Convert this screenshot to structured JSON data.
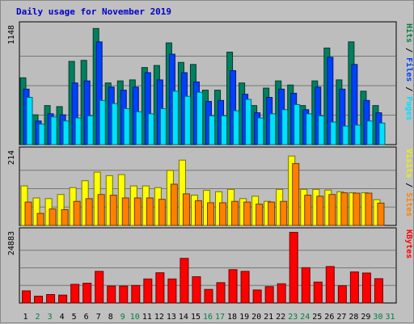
{
  "title": "Daily usage for November 2019",
  "chart_data": [
    {
      "type": "bar",
      "panel": "hits-files-pages",
      "ymax_label": "1148",
      "ylim": [
        0,
        1148
      ],
      "grid": true,
      "right_labels": [
        {
          "text": "Hits",
          "color": "#008040"
        },
        {
          "text": " / ",
          "color": "#000000"
        },
        {
          "text": "Files",
          "color": "#0040ff"
        },
        {
          "text": " / ",
          "color": "#000000"
        },
        {
          "text": "Pages",
          "color": "#00e0ff"
        }
      ],
      "categories": [
        "1",
        "2",
        "3",
        "4",
        "5",
        "6",
        "7",
        "8",
        "9",
        "10",
        "11",
        "12",
        "13",
        "14",
        "15",
        "16",
        "17",
        "18",
        "19",
        "20",
        "21",
        "22",
        "23",
        "24",
        "25",
        "26",
        "27",
        "28",
        "29",
        "30",
        "31"
      ],
      "weekend_days": [
        "2",
        "3",
        "9",
        "10",
        "16",
        "17",
        "23",
        "24",
        "30",
        "31"
      ],
      "series": [
        {
          "name": "Hits",
          "color": "#008060",
          "values": [
            650,
            290,
            380,
            370,
            810,
            820,
            1130,
            600,
            620,
            630,
            750,
            770,
            990,
            800,
            780,
            530,
            530,
            900,
            600,
            380,
            550,
            620,
            580,
            380,
            620,
            940,
            630,
            1000,
            520,
            380,
            0
          ]
        },
        {
          "name": "Files",
          "color": "#0040ff",
          "values": [
            540,
            230,
            300,
            290,
            600,
            620,
            1000,
            560,
            530,
            560,
            700,
            630,
            880,
            700,
            610,
            420,
            430,
            720,
            490,
            310,
            460,
            540,
            500,
            340,
            560,
            850,
            540,
            780,
            430,
            310,
            0
          ]
        },
        {
          "name": "Pages",
          "color": "#00e0ff",
          "values": [
            460,
            200,
            270,
            230,
            260,
            280,
            430,
            400,
            350,
            320,
            300,
            350,
            520,
            470,
            510,
            280,
            280,
            330,
            440,
            260,
            300,
            340,
            390,
            300,
            280,
            220,
            180,
            190,
            230,
            210,
            0
          ]
        }
      ]
    },
    {
      "type": "bar",
      "panel": "visits-sites",
      "ymax_label": "214",
      "ylim": [
        0,
        214
      ],
      "grid": true,
      "right_labels": [
        {
          "text": "Visits",
          "color": "#f0f000"
        },
        {
          "text": " / ",
          "color": "#000000"
        },
        {
          "text": "Sites",
          "color": "#ff8000"
        }
      ],
      "categories": [
        "1",
        "2",
        "3",
        "4",
        "5",
        "6",
        "7",
        "8",
        "9",
        "10",
        "11",
        "12",
        "13",
        "14",
        "15",
        "16",
        "17",
        "18",
        "19",
        "20",
        "21",
        "22",
        "23",
        "24",
        "25",
        "26",
        "27",
        "28",
        "29",
        "30",
        "31"
      ],
      "series": [
        {
          "name": "Visits",
          "color": "#ffff00",
          "values": [
            115,
            80,
            78,
            90,
            110,
            130,
            155,
            145,
            148,
            115,
            115,
            110,
            160,
            190,
            88,
            102,
            98,
            105,
            78,
            85,
            70,
            105,
            202,
            105,
            105,
            103,
            98,
            95,
            95,
            75,
            0
          ]
        },
        {
          "name": "Sites",
          "color": "#ff8000",
          "values": [
            68,
            35,
            48,
            46,
            70,
            78,
            90,
            88,
            80,
            80,
            80,
            76,
            120,
            92,
            72,
            66,
            66,
            70,
            68,
            62,
            68,
            70,
            180,
            88,
            85,
            90,
            95,
            94,
            94,
            65,
            0
          ]
        }
      ]
    },
    {
      "type": "bar",
      "panel": "kbytes",
      "ymax_label": "24883",
      "ylim": [
        0,
        24883
      ],
      "grid": true,
      "right_labels": [
        {
          "text": "KBytes",
          "color": "#ff0000"
        }
      ],
      "categories": [
        "1",
        "2",
        "3",
        "4",
        "5",
        "6",
        "7",
        "8",
        "9",
        "10",
        "11",
        "12",
        "13",
        "14",
        "15",
        "16",
        "17",
        "18",
        "19",
        "20",
        "21",
        "22",
        "23",
        "24",
        "25",
        "26",
        "27",
        "28",
        "29",
        "30",
        "31"
      ],
      "series": [
        {
          "name": "KBytes",
          "color": "#ff0000",
          "values": [
            4300,
            2400,
            3000,
            2800,
            6600,
            7000,
            11200,
            6000,
            6000,
            6200,
            8500,
            10700,
            8500,
            15800,
            9300,
            4800,
            7200,
            11800,
            11200,
            4600,
            5800,
            6800,
            25000,
            12500,
            7400,
            12900,
            6100,
            11000,
            10600,
            8600,
            0
          ]
        }
      ]
    }
  ]
}
